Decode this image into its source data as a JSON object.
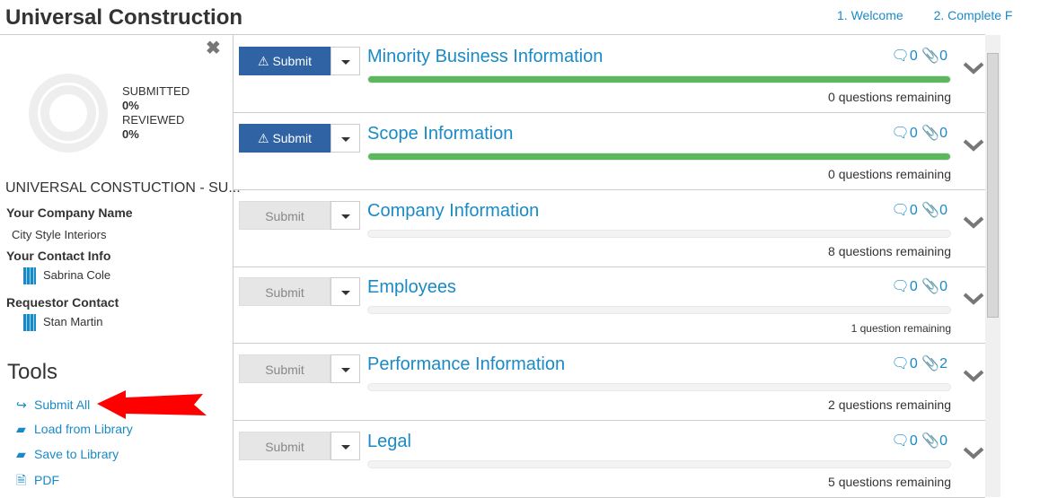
{
  "header": {
    "title": "Universal Construction",
    "steps": [
      "1. Welcome",
      "2. Complete F"
    ]
  },
  "sidebar": {
    "stats": {
      "submitted_label": "SUBMITTED",
      "submitted_value": "0%",
      "reviewed_label": "REVIEWED",
      "reviewed_value": "0%"
    },
    "org": "UNIVERSAL CONSTUCTION - SU...",
    "company_label": "Your Company Name",
    "company": "City Style Interiors",
    "contact_label": "Your Contact Info",
    "contact": "Sabrina Cole",
    "requestor_label": "Requestor Contact",
    "requestor": "Stan Martin",
    "tools_title": "Tools",
    "tools": [
      {
        "label": "Submit All",
        "icon": "share-icon"
      },
      {
        "label": "Load from Library",
        "icon": "book-icon"
      },
      {
        "label": "Save to Library",
        "icon": "book-icon"
      },
      {
        "label": "PDF",
        "icon": "pdf-icon"
      }
    ]
  },
  "submit_label": "Submit",
  "sections": [
    {
      "title": "Minority Business Information",
      "comments": "0",
      "attachments": "0",
      "progress": 100,
      "remaining": "0 questions remaining",
      "active": true
    },
    {
      "title": "Scope Information",
      "comments": "0",
      "attachments": "0",
      "progress": 100,
      "remaining": "0 questions remaining",
      "active": true
    },
    {
      "title": "Company Information",
      "comments": "0",
      "attachments": "0",
      "progress": 0,
      "remaining": "8 questions remaining",
      "active": false
    },
    {
      "title": "Employees",
      "comments": "0",
      "attachments": "0",
      "progress": 0,
      "remaining": "1 question remaining",
      "active": false
    },
    {
      "title": "Performance Information",
      "comments": "0",
      "attachments": "2",
      "progress": 0,
      "remaining": "2 questions remaining",
      "active": false
    },
    {
      "title": "Legal",
      "comments": "0",
      "attachments": "0",
      "progress": 0,
      "remaining": "5 questions remaining",
      "active": false
    }
  ],
  "colors": {
    "accent": "#1a8ac6",
    "button": "#2f63a3",
    "progress": "#5cb85c",
    "arrow": "#ff0000"
  }
}
